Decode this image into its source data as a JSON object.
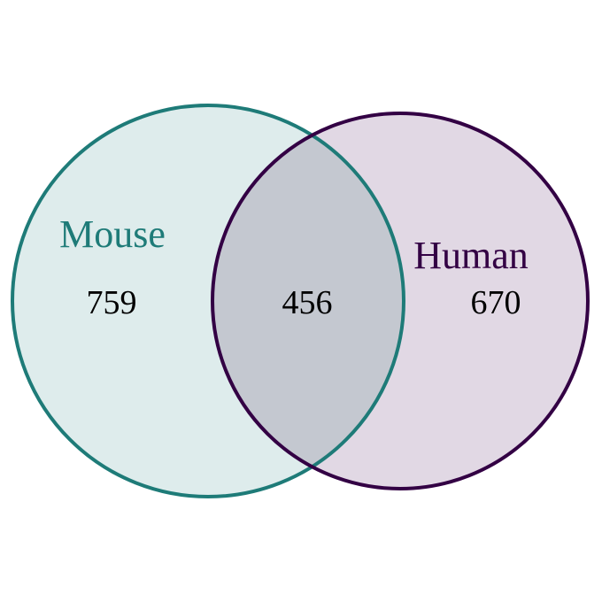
{
  "venn": {
    "sets": [
      {
        "name": "Mouse",
        "only_count": "759",
        "stroke_color": "#1e7b78",
        "fill_color": "#deecec"
      },
      {
        "name": "Human",
        "only_count": "670",
        "stroke_color": "#330044",
        "fill_color": "#e1d8e4"
      }
    ],
    "intersection": {
      "count": "456",
      "fill_color": "#c4c8d0"
    },
    "text_color": "#000000"
  }
}
